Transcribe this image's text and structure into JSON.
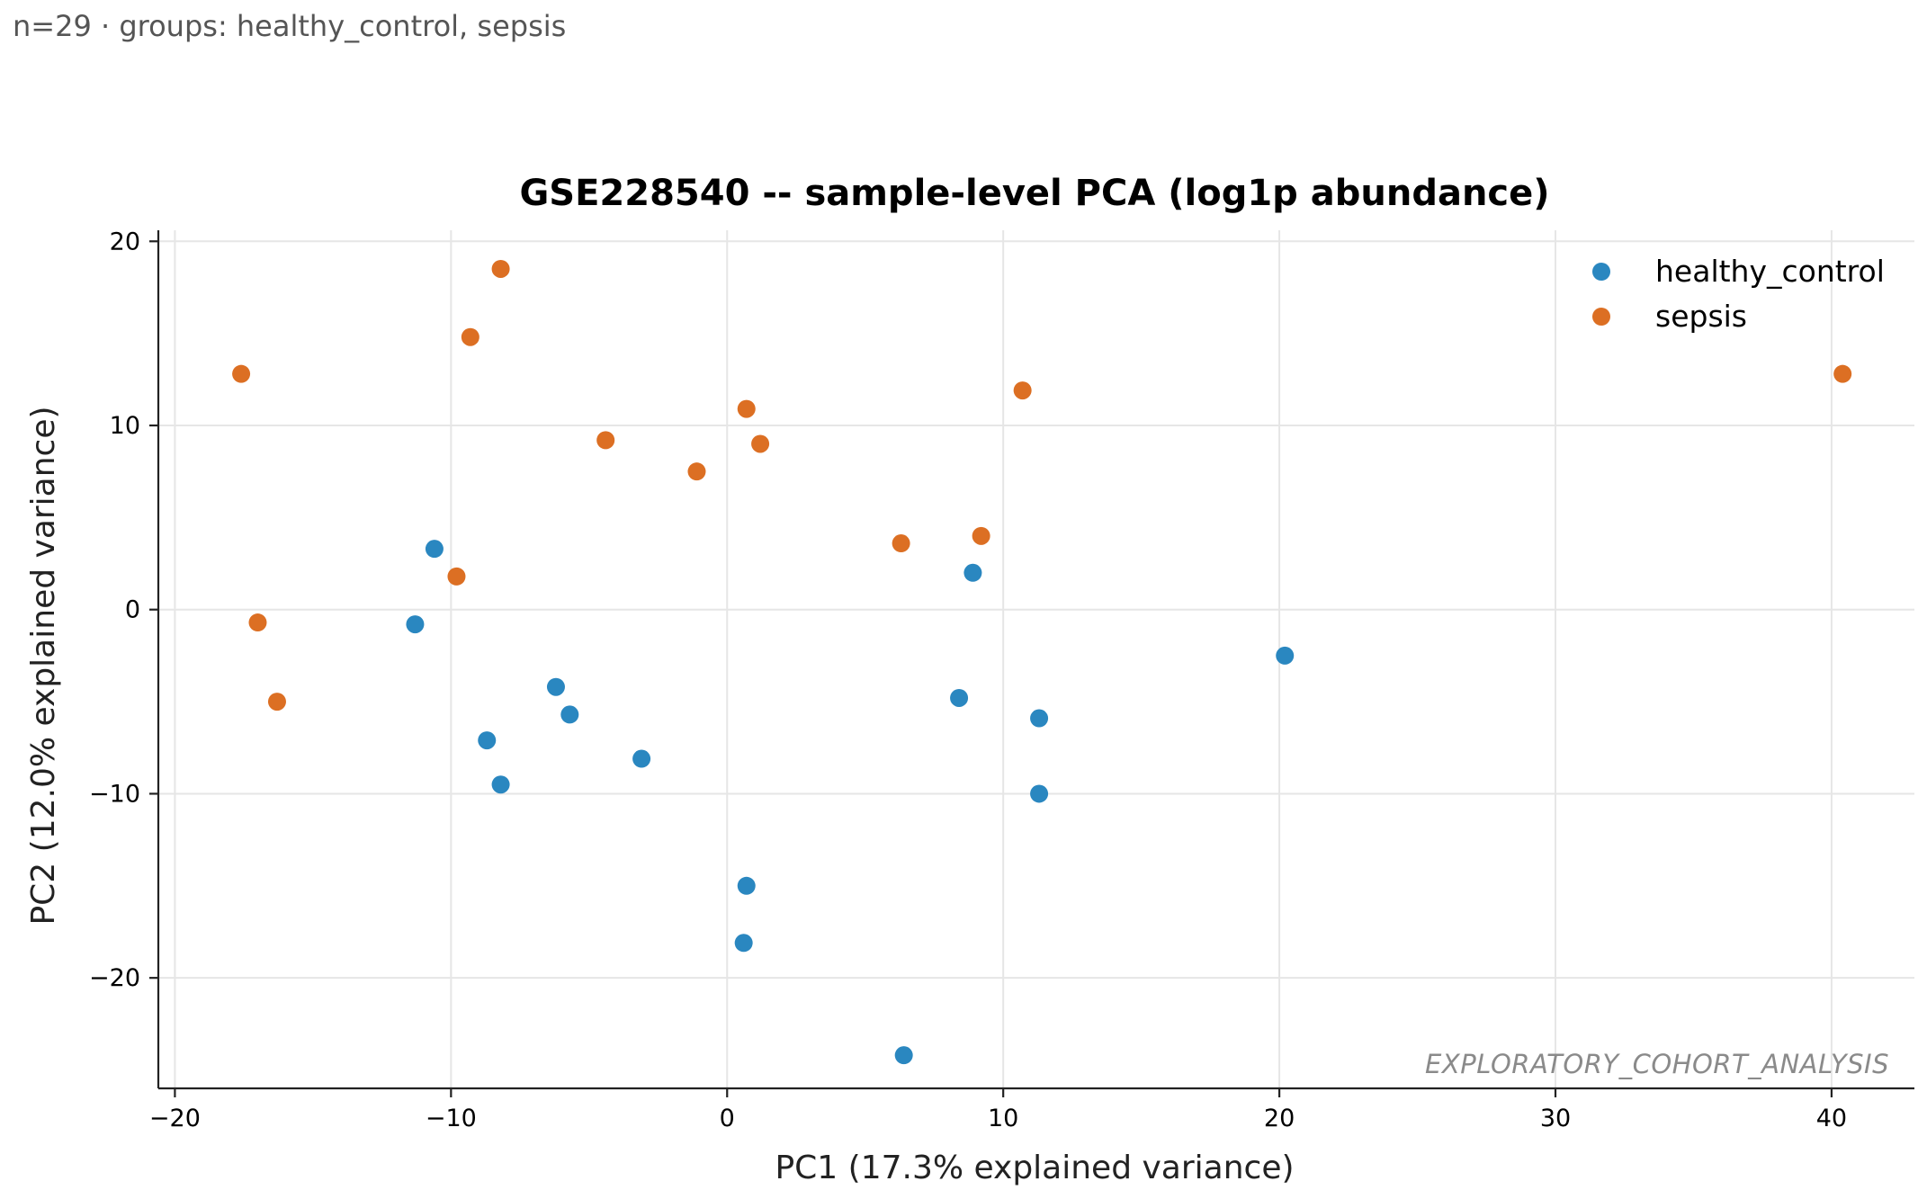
{
  "header": {
    "subtitle": "n=29 · groups: healthy_control, sepsis"
  },
  "chart_data": {
    "type": "scatter",
    "title": "GSE228540 -- sample-level PCA (log1p abundance)",
    "xlabel": "PC1 (17.3% explained variance)",
    "ylabel": "PC2 (12.0% explained variance)",
    "xlim": [
      -20.6,
      43.0
    ],
    "ylim": [
      -26.0,
      20.6
    ],
    "xticks": [
      -20,
      -10,
      0,
      10,
      20,
      30,
      40
    ],
    "yticks": [
      -20,
      -10,
      0,
      10,
      20
    ],
    "grid": true,
    "legend_position": "top-right",
    "watermark": "EXPLORATORY_COHORT_ANALYSIS",
    "series": [
      {
        "name": "healthy_control",
        "color": "#2a87c0",
        "points": [
          [
            -10.6,
            3.3
          ],
          [
            -11.3,
            -0.8
          ],
          [
            -6.2,
            -4.2
          ],
          [
            -5.7,
            -5.7
          ],
          [
            -8.7,
            -7.1
          ],
          [
            -8.2,
            -9.5
          ],
          [
            -3.1,
            -8.1
          ],
          [
            8.9,
            2.0
          ],
          [
            8.4,
            -4.8
          ],
          [
            11.3,
            -5.9
          ],
          [
            11.3,
            -10.0
          ],
          [
            20.2,
            -2.5
          ],
          [
            0.7,
            -15.0
          ],
          [
            0.6,
            -18.1
          ],
          [
            6.4,
            -24.2
          ]
        ]
      },
      {
        "name": "sepsis",
        "color": "#dc6f23",
        "points": [
          [
            -8.2,
            18.5
          ],
          [
            -9.3,
            14.8
          ],
          [
            -17.6,
            12.8
          ],
          [
            -4.4,
            9.2
          ],
          [
            0.7,
            10.9
          ],
          [
            1.2,
            9.0
          ],
          [
            -1.1,
            7.5
          ],
          [
            10.7,
            11.9
          ],
          [
            6.3,
            3.6
          ],
          [
            9.2,
            4.0
          ],
          [
            -9.8,
            1.8
          ],
          [
            -17.0,
            -0.7
          ],
          [
            -16.3,
            -5.0
          ],
          [
            40.4,
            12.8
          ]
        ]
      }
    ]
  }
}
